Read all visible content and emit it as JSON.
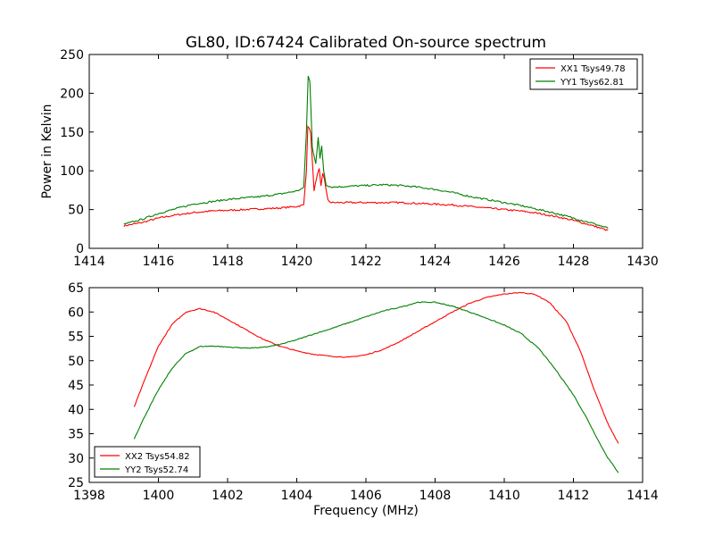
{
  "title": "GL80, ID:67424 Calibrated On-source spectrum",
  "chart_data": [
    {
      "type": "line",
      "ylabel": "Power in Kelvin",
      "xlabel": "",
      "xlim": [
        1414,
        1430
      ],
      "ylim": [
        0,
        250
      ],
      "xticks": [
        1414,
        1416,
        1418,
        1420,
        1422,
        1424,
        1426,
        1428,
        1430
      ],
      "yticks": [
        0,
        50,
        100,
        150,
        200,
        250
      ],
      "legend_position": "top-right",
      "series": [
        {
          "name": "XX1 Tsys49.78",
          "color": "#ff0000",
          "points": [
            [
              1415.0,
              29
            ],
            [
              1415.5,
              33
            ],
            [
              1416.0,
              39
            ],
            [
              1416.5,
              43
            ],
            [
              1417.0,
              46
            ],
            [
              1417.5,
              48
            ],
            [
              1418.0,
              49
            ],
            [
              1418.5,
              50
            ],
            [
              1419.0,
              51
            ],
            [
              1419.5,
              52
            ],
            [
              1420.0,
              54
            ],
            [
              1420.2,
              56
            ],
            [
              1420.28,
              100
            ],
            [
              1420.32,
              158
            ],
            [
              1420.4,
              150
            ],
            [
              1420.5,
              75
            ],
            [
              1420.6,
              95
            ],
            [
              1420.65,
              102
            ],
            [
              1420.7,
              80
            ],
            [
              1420.75,
              97
            ],
            [
              1420.8,
              90
            ],
            [
              1420.85,
              75
            ],
            [
              1420.9,
              62
            ],
            [
              1421.0,
              59
            ],
            [
              1421.5,
              59
            ],
            [
              1422.0,
              59
            ],
            [
              1422.5,
              59
            ],
            [
              1423.0,
              59
            ],
            [
              1423.5,
              58
            ],
            [
              1424.0,
              57
            ],
            [
              1424.5,
              56
            ],
            [
              1425.0,
              54
            ],
            [
              1425.5,
              52
            ],
            [
              1426.0,
              50
            ],
            [
              1426.5,
              48
            ],
            [
              1427.0,
              45
            ],
            [
              1427.5,
              41
            ],
            [
              1428.0,
              36
            ],
            [
              1428.5,
              30
            ],
            [
              1429.0,
              23
            ]
          ]
        },
        {
          "name": "YY1 Tsys62.81",
          "color": "#008000",
          "points": [
            [
              1415.0,
              31
            ],
            [
              1415.5,
              37
            ],
            [
              1416.0,
              45
            ],
            [
              1416.5,
              51
            ],
            [
              1417.0,
              57
            ],
            [
              1417.5,
              60
            ],
            [
              1418.0,
              63
            ],
            [
              1418.5,
              65
            ],
            [
              1419.0,
              67
            ],
            [
              1419.5,
              70
            ],
            [
              1420.0,
              74
            ],
            [
              1420.2,
              78
            ],
            [
              1420.28,
              150
            ],
            [
              1420.33,
              222
            ],
            [
              1420.38,
              215
            ],
            [
              1420.45,
              130
            ],
            [
              1420.55,
              110
            ],
            [
              1420.62,
              143
            ],
            [
              1420.67,
              115
            ],
            [
              1420.72,
              132
            ],
            [
              1420.78,
              100
            ],
            [
              1420.85,
              82
            ],
            [
              1421.0,
              79
            ],
            [
              1421.5,
              80
            ],
            [
              1422.0,
              81
            ],
            [
              1422.5,
              82
            ],
            [
              1423.0,
              81
            ],
            [
              1423.5,
              79
            ],
            [
              1424.0,
              76
            ],
            [
              1424.5,
              72
            ],
            [
              1425.0,
              67
            ],
            [
              1425.5,
              63
            ],
            [
              1426.0,
              59
            ],
            [
              1426.5,
              55
            ],
            [
              1427.0,
              50
            ],
            [
              1427.5,
              45
            ],
            [
              1428.0,
              39
            ],
            [
              1428.5,
              33
            ],
            [
              1429.0,
              26
            ]
          ]
        }
      ]
    },
    {
      "type": "line",
      "xlabel": "Frequency (MHz)",
      "ylabel": "",
      "xlim": [
        1398,
        1414
      ],
      "ylim": [
        25,
        65
      ],
      "xticks": [
        1398,
        1400,
        1402,
        1404,
        1406,
        1408,
        1410,
        1412,
        1414
      ],
      "yticks": [
        25,
        30,
        35,
        40,
        45,
        50,
        55,
        60,
        65
      ],
      "legend_position": "bottom-left",
      "series": [
        {
          "name": "XX2 Tsys54.82",
          "color": "#ff0000",
          "points": [
            [
              1399.3,
              40.5
            ],
            [
              1399.6,
              46
            ],
            [
              1400.0,
              53
            ],
            [
              1400.4,
              57.5
            ],
            [
              1400.8,
              60
            ],
            [
              1401.2,
              60.7
            ],
            [
              1401.6,
              60
            ],
            [
              1402.0,
              58.5
            ],
            [
              1402.5,
              56.5
            ],
            [
              1403.0,
              54.5
            ],
            [
              1403.5,
              53
            ],
            [
              1404.0,
              52
            ],
            [
              1404.5,
              51.3
            ],
            [
              1405.0,
              50.9
            ],
            [
              1405.5,
              50.7
            ],
            [
              1406.0,
              51.2
            ],
            [
              1406.5,
              52.3
            ],
            [
              1407.0,
              54
            ],
            [
              1407.5,
              56
            ],
            [
              1408.0,
              58
            ],
            [
              1408.5,
              60
            ],
            [
              1409.0,
              61.8
            ],
            [
              1409.5,
              63
            ],
            [
              1410.0,
              63.7
            ],
            [
              1410.5,
              64
            ],
            [
              1410.9,
              63.6
            ],
            [
              1411.3,
              62
            ],
            [
              1411.8,
              58
            ],
            [
              1412.2,
              52
            ],
            [
              1412.6,
              44
            ],
            [
              1413.0,
              37
            ],
            [
              1413.3,
              33
            ]
          ]
        },
        {
          "name": "YY2 Tsys52.74",
          "color": "#008000",
          "points": [
            [
              1399.3,
              34
            ],
            [
              1399.6,
              38.5
            ],
            [
              1400.0,
              44
            ],
            [
              1400.4,
              48.5
            ],
            [
              1400.8,
              51.5
            ],
            [
              1401.2,
              52.9
            ],
            [
              1401.6,
              53
            ],
            [
              1402.0,
              52.8
            ],
            [
              1402.5,
              52.6
            ],
            [
              1403.0,
              52.7
            ],
            [
              1403.5,
              53.3
            ],
            [
              1404.0,
              54.3
            ],
            [
              1404.5,
              55.5
            ],
            [
              1405.0,
              56.6
            ],
            [
              1405.5,
              57.8
            ],
            [
              1406.0,
              59
            ],
            [
              1406.5,
              60.2
            ],
            [
              1407.0,
              61
            ],
            [
              1407.5,
              62
            ],
            [
              1408.0,
              62
            ],
            [
              1408.5,
              61.2
            ],
            [
              1409.0,
              60
            ],
            [
              1409.5,
              58.7
            ],
            [
              1410.0,
              57.3
            ],
            [
              1410.5,
              55.5
            ],
            [
              1411.0,
              52.5
            ],
            [
              1411.5,
              48
            ],
            [
              1412.0,
              43
            ],
            [
              1412.4,
              38
            ],
            [
              1412.8,
              32.5
            ],
            [
              1413.0,
              30
            ],
            [
              1413.3,
              27
            ]
          ]
        }
      ]
    }
  ]
}
